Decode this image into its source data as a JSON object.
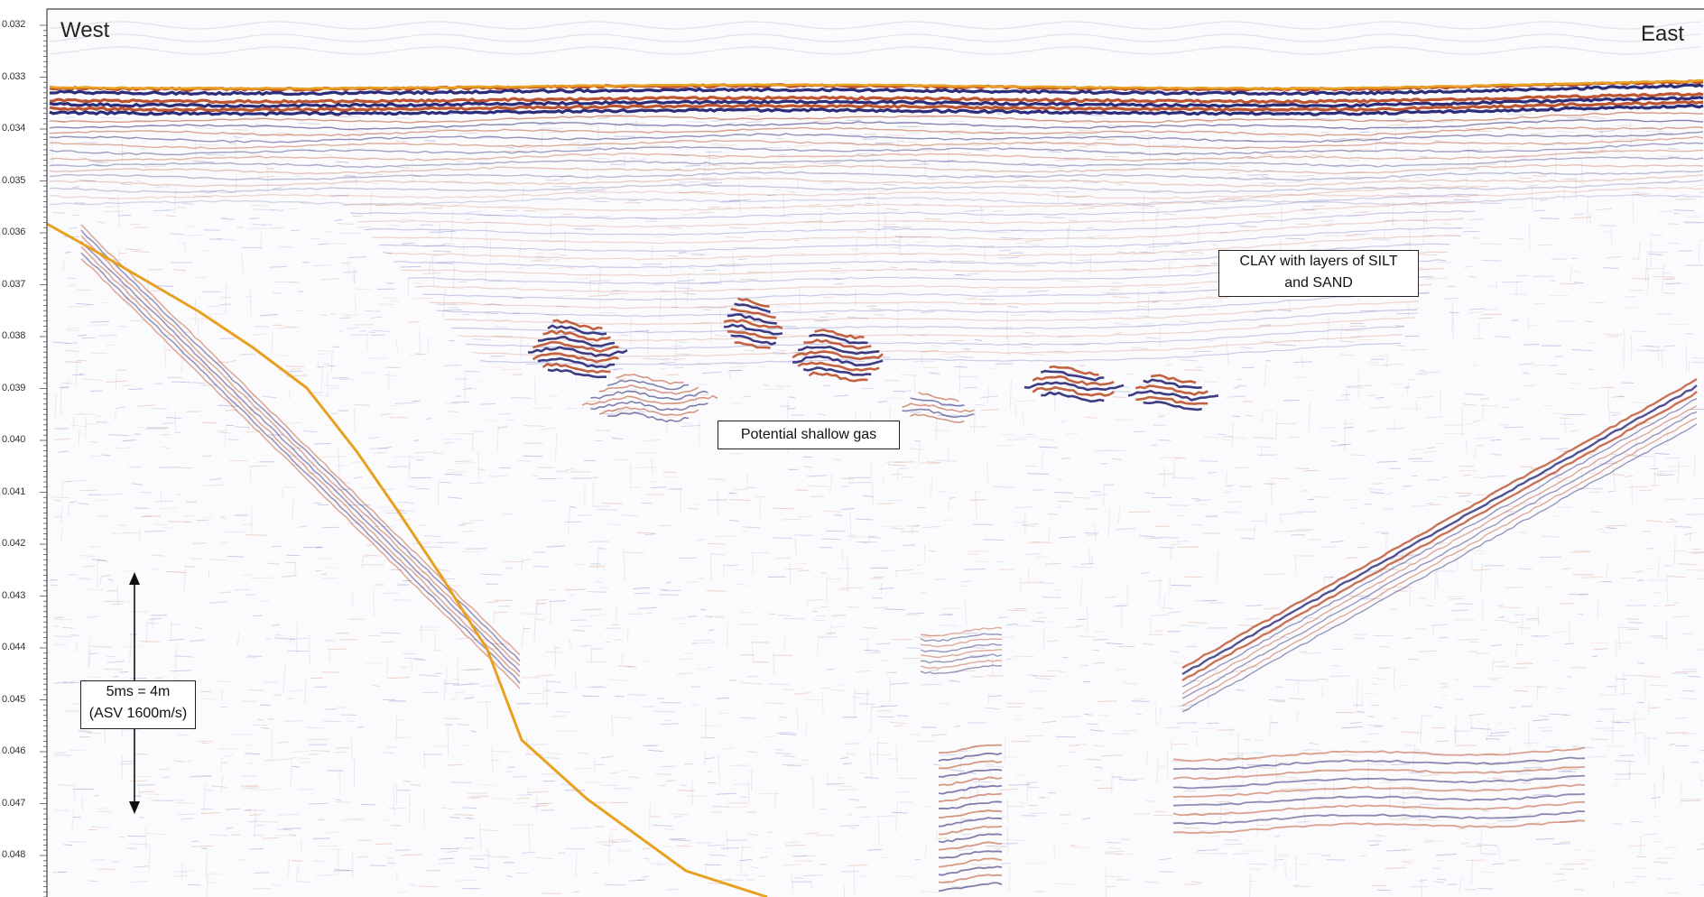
{
  "directions": {
    "west": "West",
    "east": "East"
  },
  "y_axis": {
    "ticks": [
      "0.032",
      "0.033",
      "0.034",
      "0.035",
      "0.036",
      "0.037",
      "0.038",
      "0.039",
      "0.040",
      "0.041",
      "0.042",
      "0.043",
      "0.044",
      "0.045",
      "0.046",
      "0.047",
      "0.048"
    ]
  },
  "annotations": {
    "clay": {
      "line1": "CLAY with layers of SILT",
      "line2": "and SAND"
    },
    "gas": "Potential shallow gas",
    "scale": {
      "line1": "5ms = 4m",
      "line2": "(ASV 1600m/s)"
    }
  },
  "colors": {
    "horizon": "#E8A020",
    "positive": "#1a1a6e",
    "negative": "#b8471f"
  }
}
